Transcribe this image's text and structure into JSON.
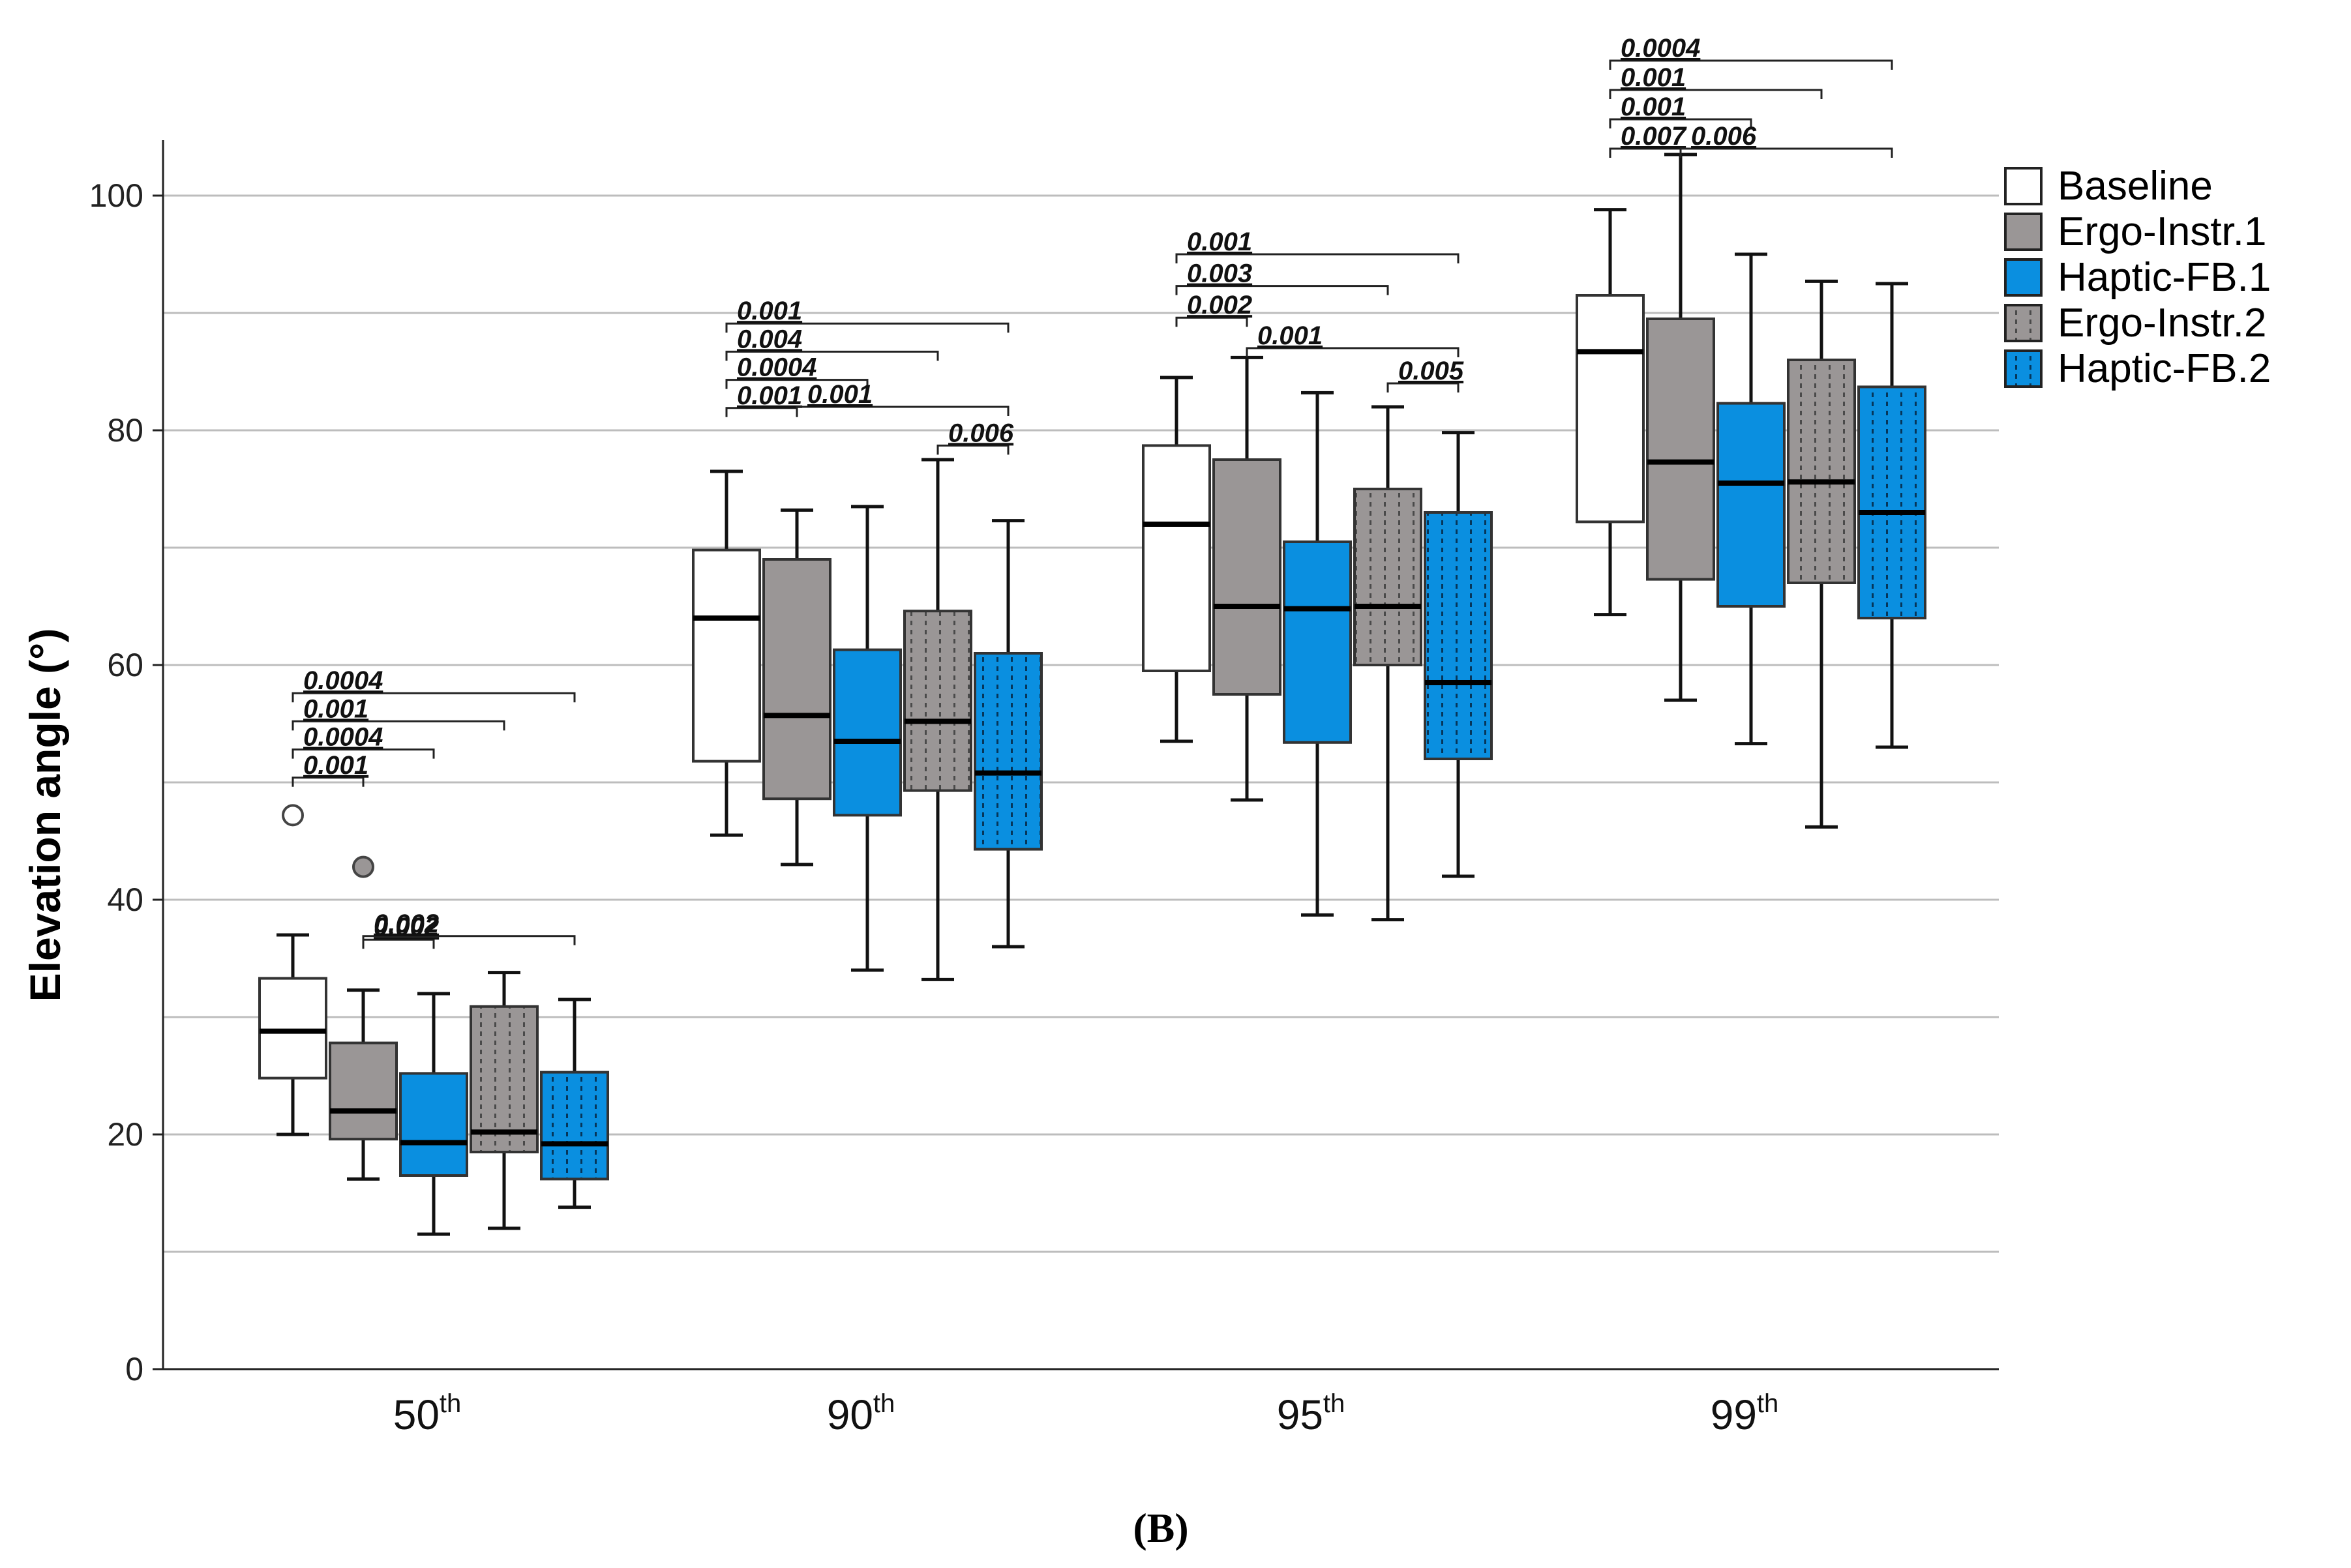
{
  "chart_data": {
    "type": "box",
    "ylabel": "Elevation angle (°)",
    "ylim": [
      0,
      105
    ],
    "yticks": [
      0,
      20,
      40,
      60,
      80,
      100
    ],
    "gridlines": [
      10,
      20,
      30,
      40,
      50,
      60,
      70,
      80,
      90,
      100
    ],
    "categories": [
      {
        "base": "50",
        "suffix": "th"
      },
      {
        "base": "90",
        "suffix": "th"
      },
      {
        "base": "95",
        "suffix": "th"
      },
      {
        "base": "99",
        "suffix": "th"
      }
    ],
    "series": [
      {
        "name": "Baseline",
        "fill": "#ffffff",
        "pattern": "none",
        "boxes": [
          {
            "min": 20,
            "q1": 24.8,
            "median": 28.8,
            "q3": 33.3,
            "max": 37.0,
            "outliers": [
              47.2
            ]
          },
          {
            "min": 45.5,
            "q1": 51.8,
            "median": 64.0,
            "q3": 69.8,
            "max": 76.5,
            "outliers": []
          },
          {
            "min": 53.5,
            "q1": 59.5,
            "median": 72.0,
            "q3": 78.7,
            "max": 84.5,
            "outliers": []
          },
          {
            "min": 64.3,
            "q1": 72.2,
            "median": 86.7,
            "q3": 91.5,
            "max": 98.8,
            "outliers": []
          }
        ]
      },
      {
        "name": "Ergo-Instr.1",
        "fill": "#9a9696",
        "pattern": "none",
        "boxes": [
          {
            "min": 16.2,
            "q1": 19.6,
            "median": 22.0,
            "q3": 27.8,
            "max": 32.3,
            "outliers": [
              42.8
            ]
          },
          {
            "min": 43.0,
            "q1": 48.6,
            "median": 55.7,
            "q3": 69.0,
            "max": 73.2,
            "outliers": []
          },
          {
            "min": 48.5,
            "q1": 57.5,
            "median": 65.0,
            "q3": 77.5,
            "max": 86.2,
            "outliers": []
          },
          {
            "min": 57.0,
            "q1": 67.3,
            "median": 77.3,
            "q3": 89.5,
            "max": 103.5,
            "outliers": []
          }
        ]
      },
      {
        "name": "Haptic-FB.1",
        "fill": "#0a8fe0",
        "pattern": "none",
        "boxes": [
          {
            "min": 11.5,
            "q1": 16.5,
            "median": 19.3,
            "q3": 25.2,
            "max": 32.0,
            "outliers": []
          },
          {
            "min": 34.0,
            "q1": 47.2,
            "median": 53.5,
            "q3": 61.3,
            "max": 73.5,
            "outliers": []
          },
          {
            "min": 38.7,
            "q1": 53.4,
            "median": 64.8,
            "q3": 70.5,
            "max": 83.2,
            "outliers": []
          },
          {
            "min": 53.3,
            "q1": 65.0,
            "median": 75.5,
            "q3": 82.3,
            "max": 95.0,
            "outliers": []
          }
        ]
      },
      {
        "name": "Ergo-Instr.2",
        "fill": "#9a9696",
        "pattern": "dots",
        "boxes": [
          {
            "min": 12.0,
            "q1": 18.5,
            "median": 20.2,
            "q3": 30.9,
            "max": 33.8,
            "outliers": []
          },
          {
            "min": 33.2,
            "q1": 49.3,
            "median": 55.2,
            "q3": 64.6,
            "max": 77.5,
            "outliers": []
          },
          {
            "min": 38.3,
            "q1": 60.0,
            "median": 65.0,
            "q3": 75.0,
            "max": 82.0,
            "outliers": []
          },
          {
            "min": 46.2,
            "q1": 67.0,
            "median": 75.6,
            "q3": 86.0,
            "max": 92.7,
            "outliers": []
          }
        ]
      },
      {
        "name": "Haptic-FB.2",
        "fill": "#0a8fe0",
        "pattern": "dots",
        "boxes": [
          {
            "min": 13.8,
            "q1": 16.2,
            "median": 19.2,
            "q3": 25.3,
            "max": 31.5,
            "outliers": []
          },
          {
            "min": 36.0,
            "q1": 44.3,
            "median": 50.8,
            "q3": 61.0,
            "max": 72.3,
            "outliers": []
          },
          {
            "min": 42.0,
            "q1": 52.0,
            "median": 58.5,
            "q3": 73.0,
            "max": 79.8,
            "outliers": []
          },
          {
            "min": 53.0,
            "q1": 64.0,
            "median": 73.0,
            "q3": 83.7,
            "max": 92.5,
            "outliers": []
          }
        ]
      }
    ],
    "significance": [
      {
        "group": 0,
        "from": 0,
        "to": 1,
        "y": 50.4,
        "label": "0.001"
      },
      {
        "group": 0,
        "from": 0,
        "to": 2,
        "y": 52.8,
        "label": "0.0004"
      },
      {
        "group": 0,
        "from": 0,
        "to": 3,
        "y": 55.2,
        "label": "0.001"
      },
      {
        "group": 0,
        "from": 0,
        "to": 4,
        "y": 57.6,
        "label": "0.0004"
      },
      {
        "group": 0,
        "from": 1,
        "to": 2,
        "y": 36.6,
        "label": "0.002"
      },
      {
        "group": 0,
        "from": 1,
        "to": 4,
        "y": 36.9,
        "label": "0.002"
      },
      {
        "group": 1,
        "from": 0,
        "to": 1,
        "y": 81.9,
        "label": "0.001"
      },
      {
        "group": 1,
        "from": 0,
        "to": 2,
        "y": 84.3,
        "label": "0.0004"
      },
      {
        "group": 1,
        "from": 0,
        "to": 3,
        "y": 86.7,
        "label": "0.004"
      },
      {
        "group": 1,
        "from": 0,
        "to": 4,
        "y": 89.1,
        "label": "0.001"
      },
      {
        "group": 1,
        "from": 1,
        "to": 4,
        "y": 82.0,
        "label": "0.001"
      },
      {
        "group": 1,
        "from": 3,
        "to": 4,
        "y": 78.7,
        "label": "0.006"
      },
      {
        "group": 2,
        "from": 0,
        "to": 1,
        "y": 89.6,
        "label": "0.002"
      },
      {
        "group": 2,
        "from": 0,
        "to": 3,
        "y": 92.3,
        "label": "0.003"
      },
      {
        "group": 2,
        "from": 0,
        "to": 4,
        "y": 95.0,
        "label": "0.001"
      },
      {
        "group": 2,
        "from": 1,
        "to": 4,
        "y": 87.0,
        "label": "0.001"
      },
      {
        "group": 2,
        "from": 3,
        "to": 4,
        "y": 84.0,
        "label": "0.005"
      },
      {
        "group": 3,
        "from": 0,
        "to": 1,
        "y": 104.0,
        "label": "0.007"
      },
      {
        "group": 3,
        "from": 0,
        "to": 2,
        "y": 106.5,
        "label": "0.001"
      },
      {
        "group": 3,
        "from": 0,
        "to": 3,
        "y": 109.0,
        "label": "0.001"
      },
      {
        "group": 3,
        "from": 0,
        "to": 4,
        "y": 111.5,
        "label": "0.0004"
      },
      {
        "group": 3,
        "from": 1,
        "to": 4,
        "y": 104.0,
        "label": "0.006"
      }
    ],
    "legend": [
      {
        "name": "Baseline",
        "fill": "#ffffff",
        "pattern": "none"
      },
      {
        "name": "Ergo-Instr.1",
        "fill": "#9a9696",
        "pattern": "none"
      },
      {
        "name": "Haptic-FB.1",
        "fill": "#0a8fe0",
        "pattern": "none"
      },
      {
        "name": "Ergo-Instr.2",
        "fill": "#9a9696",
        "pattern": "dots"
      },
      {
        "name": "Haptic-FB.2",
        "fill": "#0a8fe0",
        "pattern": "dots"
      }
    ],
    "legend_position": "top-right"
  },
  "caption": "(B)"
}
